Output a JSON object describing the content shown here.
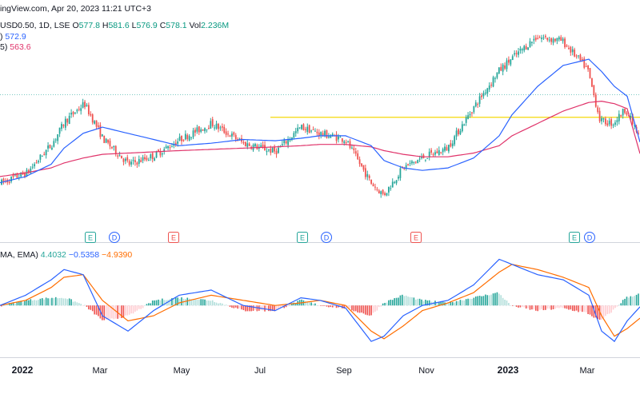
{
  "header": {
    "source": "ingView.com, Apr 20, 2023 11:21 UTC+3",
    "symbol_line": "USD0.50, 1D, LSE",
    "ohlc": [
      {
        "k": "O",
        "v": "577.8"
      },
      {
        "k": "H",
        "v": "581.6"
      },
      {
        "k": "L",
        "v": "576.9"
      },
      {
        "k": "C",
        "v": "578.1"
      },
      {
        "k": "Vol",
        "v": "2.236M"
      }
    ],
    "ma1_prefix": ")",
    "ma1_value": "572.9",
    "ma2_prefix": "5)",
    "ma2_value": "563.6",
    "macd_label": "MA, EMA)",
    "macd_hist": "4.4032",
    "macd_line": "−0.5358",
    "macd_signal": "−4.9390"
  },
  "colors": {
    "up": "#26a69a",
    "down": "#ef5350",
    "ma_fast": "#2962ff",
    "ma_slow": "#e0336a",
    "macd": "#2962ff",
    "signal": "#ff6d00",
    "level": "#f5d90a",
    "earnings": "#26a69a",
    "earnings_red": "#ef5350",
    "dividend": "#2962ff"
  },
  "x_axis_labels": [
    "2022",
    "Mar",
    "May",
    "Jul",
    "Sep",
    "Nov",
    "2023",
    "Mar"
  ],
  "events": [
    {
      "type": "E",
      "color": "earnings"
    },
    {
      "type": "D",
      "color": "dividend"
    },
    {
      "type": "E",
      "color": "earnings_red"
    },
    {
      "type": "E",
      "color": "earnings"
    },
    {
      "type": "D",
      "color": "dividend"
    },
    {
      "type": "E",
      "color": "earnings_red"
    },
    {
      "type": "E",
      "color": "earnings"
    },
    {
      "type": "D",
      "color": "dividend"
    }
  ],
  "chart_data": {
    "type": "candlestick",
    "series_x": [
      0,
      0.04,
      0.08,
      0.1,
      0.13,
      0.16,
      0.2,
      0.24,
      0.28,
      0.33,
      0.38,
      0.43,
      0.47,
      0.5,
      0.54,
      0.58,
      0.6,
      0.63,
      0.66,
      0.7,
      0.74,
      0.78,
      0.8,
      0.84,
      0.88,
      0.92,
      0.94,
      0.96,
      0.98,
      1.0
    ],
    "close": [
      540,
      548,
      572,
      590,
      604,
      575,
      555,
      562,
      575,
      588,
      572,
      565,
      585,
      580,
      575,
      540,
      530,
      552,
      560,
      568,
      600,
      630,
      640,
      658,
      655,
      632,
      590,
      588,
      600,
      578.1
    ],
    "ma_fast": [
      540,
      545,
      555,
      568,
      580,
      585,
      580,
      575,
      570,
      572,
      575,
      574,
      576,
      578,
      578,
      570,
      558,
      552,
      550,
      552,
      560,
      578,
      595,
      618,
      635,
      640,
      630,
      618,
      610,
      572.9
    ],
    "ma_slow": [
      545,
      548,
      552,
      556,
      560,
      563,
      564,
      565,
      566,
      567,
      568,
      569,
      570,
      571,
      571,
      569,
      566,
      563,
      561,
      561,
      564,
      570,
      578,
      588,
      598,
      605,
      606,
      604,
      600,
      563.6
    ],
    "level": 593,
    "macd": [
      0,
      4,
      10,
      14,
      12,
      -4,
      -10,
      -2,
      4,
      6,
      0,
      -2,
      3,
      2,
      -1,
      -14,
      -12,
      -4,
      0,
      2,
      8,
      18,
      16,
      12,
      10,
      4,
      -10,
      -14,
      -6,
      -0.5358
    ],
    "signal": [
      0,
      2,
      7,
      11,
      12,
      2,
      -6,
      -4,
      1,
      4,
      2,
      0,
      1,
      2,
      0,
      -10,
      -13,
      -8,
      -2,
      1,
      5,
      13,
      16,
      14,
      11,
      7,
      -4,
      -12,
      -9,
      -4.939
    ],
    "histogram": [
      0,
      2,
      3,
      3,
      0,
      -6,
      -4,
      2,
      3,
      2,
      -2,
      -2,
      2,
      0,
      -1,
      -4,
      1,
      4,
      2,
      1,
      3,
      5,
      0,
      -2,
      -1,
      -3,
      -6,
      -2,
      3,
      4.4032
    ]
  }
}
